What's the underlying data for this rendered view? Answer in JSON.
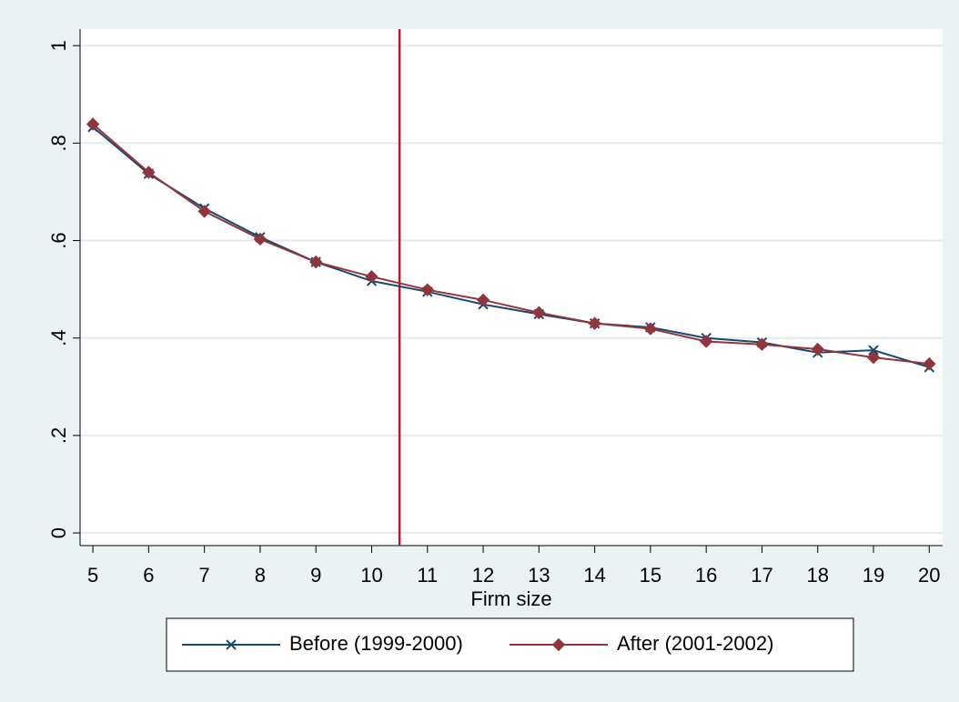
{
  "chart_data": {
    "type": "line",
    "x_label": "Firm size",
    "x": [
      5,
      6,
      7,
      8,
      9,
      10,
      11,
      12,
      13,
      14,
      15,
      16,
      17,
      18,
      19,
      20
    ],
    "series": [
      {
        "name": "Before (1999-2000)",
        "color": "#1a476f",
        "marker": "x",
        "values": [
          0.833,
          0.737,
          0.666,
          0.607,
          0.556,
          0.517,
          0.495,
          0.469,
          0.449,
          0.43,
          0.422,
          0.4,
          0.391,
          0.37,
          0.375,
          0.34
        ]
      },
      {
        "name": "After (2001-2002)",
        "color": "#90353b",
        "marker": "diamond",
        "values": [
          0.839,
          0.74,
          0.66,
          0.603,
          0.556,
          0.526,
          0.499,
          0.478,
          0.452,
          0.43,
          0.419,
          0.393,
          0.387,
          0.377,
          0.36,
          0.347
        ]
      }
    ],
    "reference_line": {
      "x": 10.5,
      "color": "#b0193a"
    },
    "xlim": [
      4.77,
      20.24
    ],
    "xticks": [
      5,
      6,
      7,
      8,
      9,
      10,
      11,
      12,
      13,
      14,
      15,
      16,
      17,
      18,
      19,
      20
    ],
    "ylim": [
      -0.026,
      1.034
    ],
    "yticks": [
      0,
      {
        "value": 0.2,
        "label": ".2"
      },
      {
        "value": 0.4,
        "label": ".4"
      },
      {
        "value": 0.6,
        "label": ".6"
      },
      {
        "value": 0.8,
        "label": ".8"
      },
      1
    ],
    "grid": true,
    "legend": "bottom"
  }
}
